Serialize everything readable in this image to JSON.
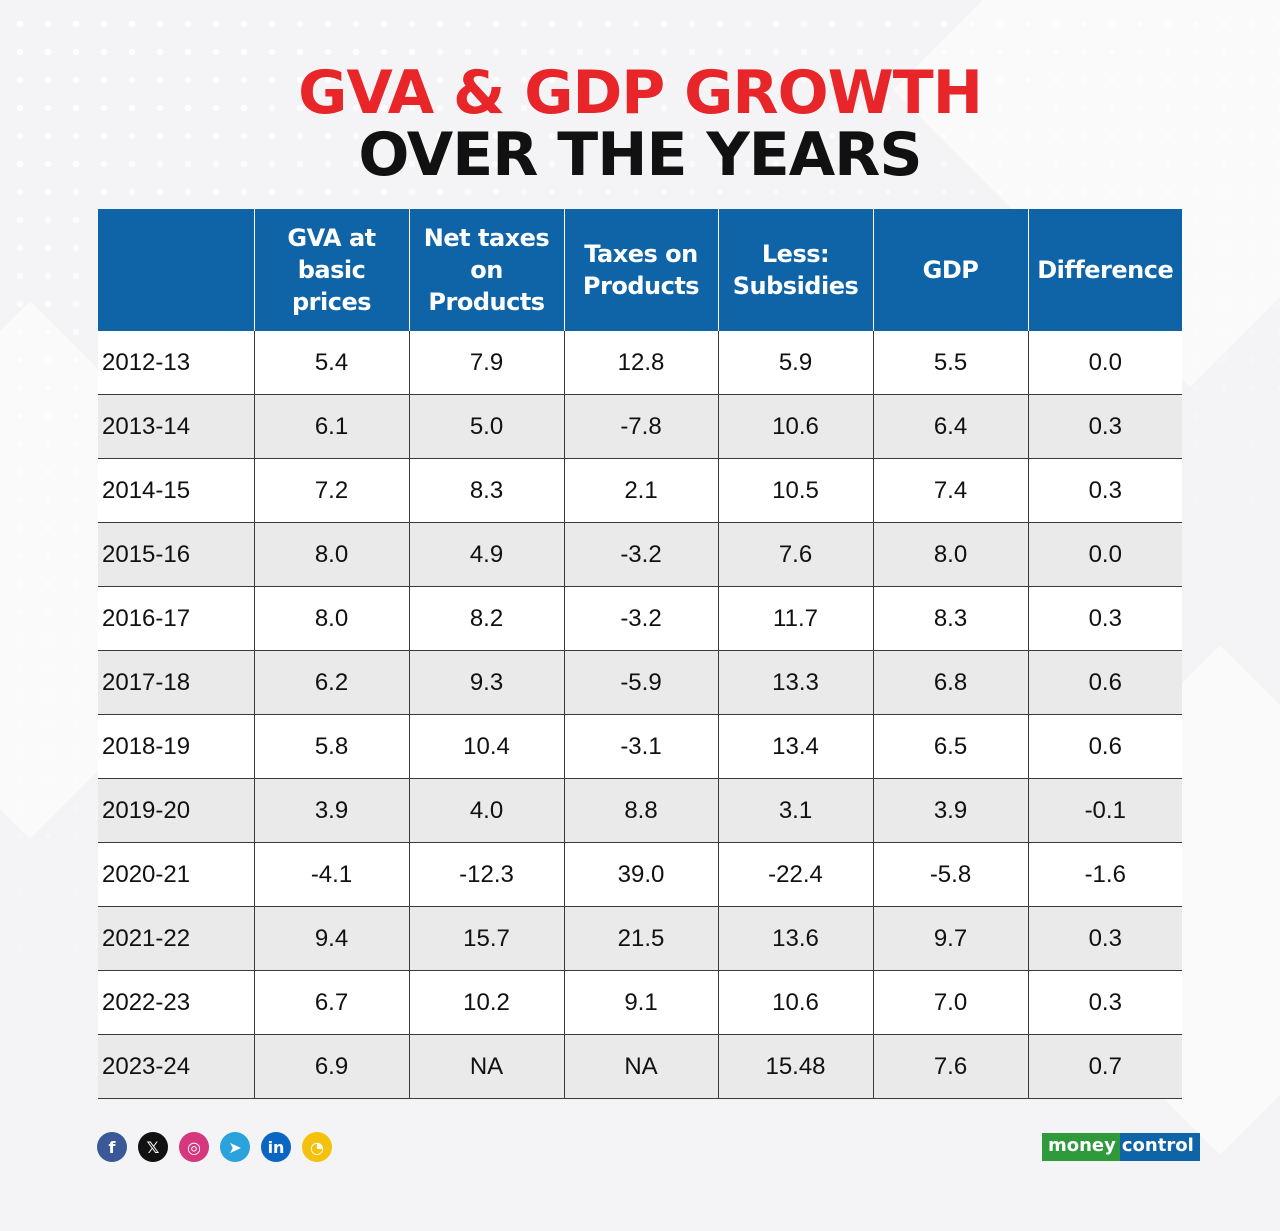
{
  "title_line1": "GVA & GDP GROWTH",
  "title_line2": "OVER THE YEARS",
  "chart_data": {
    "type": "table",
    "columns": [
      "",
      "GVA at basic prices",
      "Net taxes on Products",
      "Taxes on Products",
      "Less: Subsidies",
      "GDP",
      "Difference"
    ],
    "rows": [
      [
        "2012-13",
        "5.4",
        "7.9",
        "12.8",
        "5.9",
        "5.5",
        "0.0"
      ],
      [
        "2013-14",
        "6.1",
        "5.0",
        "-7.8",
        "10.6",
        "6.4",
        "0.3"
      ],
      [
        "2014-15",
        "7.2",
        "8.3",
        "2.1",
        "10.5",
        "7.4",
        "0.3"
      ],
      [
        "2015-16",
        "8.0",
        "4.9",
        "-3.2",
        "7.6",
        "8.0",
        "0.0"
      ],
      [
        "2016-17",
        "8.0",
        "8.2",
        "-3.2",
        "11.7",
        "8.3",
        "0.3"
      ],
      [
        "2017-18",
        "6.2",
        "9.3",
        "-5.9",
        "13.3",
        "6.8",
        "0.6"
      ],
      [
        "2018-19",
        "5.8",
        "10.4",
        "-3.1",
        "13.4",
        "6.5",
        "0.6"
      ],
      [
        "2019-20",
        "3.9",
        "4.0",
        "8.8",
        "3.1",
        "3.9",
        "-0.1"
      ],
      [
        "2020-21",
        "-4.1",
        "-12.3",
        "39.0",
        "-22.4",
        "-5.8",
        "-1.6"
      ],
      [
        "2021-22",
        "9.4",
        "15.7",
        "21.5",
        "13.6",
        "9.7",
        "0.3"
      ],
      [
        "2022-23",
        "6.7",
        "10.2",
        "9.1",
        "10.6",
        "7.0",
        "0.3"
      ],
      [
        "2023-24",
        "6.9",
        "NA",
        "NA",
        "15.48",
        "7.6",
        "0.7"
      ]
    ]
  },
  "social_icons": [
    {
      "name": "facebook-icon",
      "glyph": "f",
      "color": "#3b5998"
    },
    {
      "name": "x-icon",
      "glyph": "𝕏",
      "color": "#111111"
    },
    {
      "name": "instagram-icon",
      "glyph": "◎",
      "color": "#d6377d"
    },
    {
      "name": "telegram-icon",
      "glyph": "➤",
      "color": "#2aa3dd"
    },
    {
      "name": "linkedin-icon",
      "glyph": "in",
      "color": "#0a66c2"
    },
    {
      "name": "koo-icon",
      "glyph": "◔",
      "color": "#f4c20d"
    }
  ],
  "logo": {
    "part1": "money",
    "part2": "control"
  }
}
